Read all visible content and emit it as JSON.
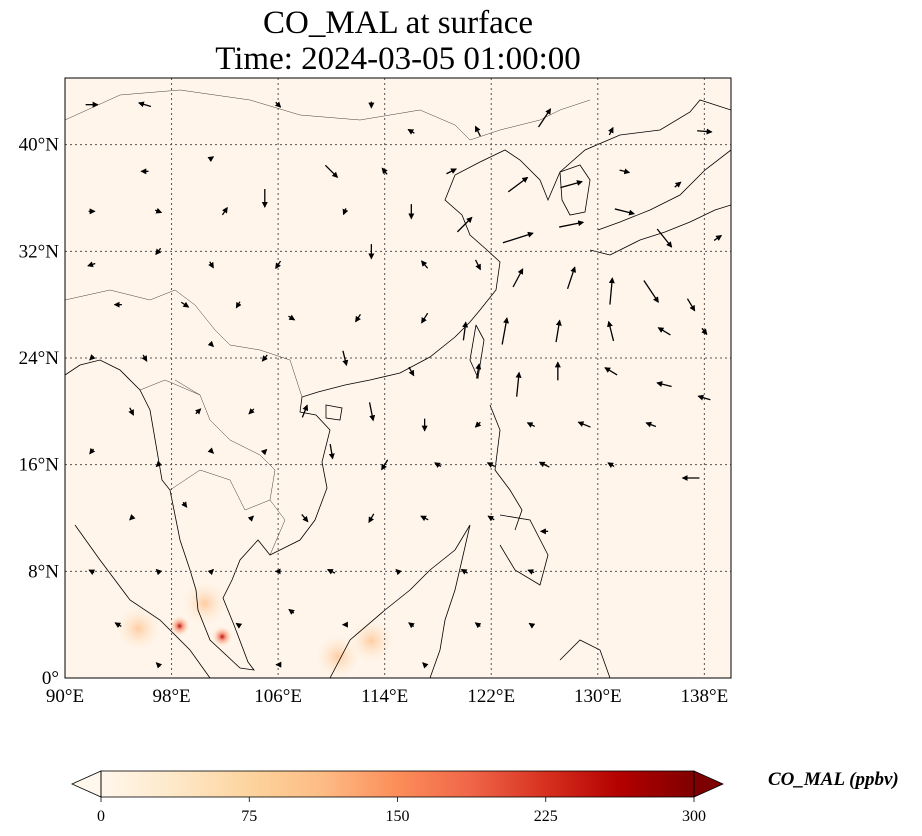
{
  "title": {
    "line1": "CO_MAL at surface",
    "line2": "Time: 2024-03-05 01:00:00"
  },
  "map": {
    "projection": "PlateCarree",
    "lon_range": [
      90,
      140
    ],
    "lat_range": [
      0,
      45
    ],
    "gridlines": "dotted",
    "lon_ticks": [
      {
        "value": 90,
        "label": "90°E"
      },
      {
        "value": 98,
        "label": "98°E"
      },
      {
        "value": 106,
        "label": "106°E"
      },
      {
        "value": 114,
        "label": "114°E"
      },
      {
        "value": 122,
        "label": "122°E"
      },
      {
        "value": 130,
        "label": "130°E"
      },
      {
        "value": 138,
        "label": "138°E"
      }
    ],
    "lat_ticks": [
      {
        "value": 0,
        "label": "0°"
      },
      {
        "value": 8,
        "label": "8°N"
      },
      {
        "value": 16,
        "label": "16°N"
      },
      {
        "value": 24,
        "label": "24°N"
      },
      {
        "value": 32,
        "label": "32°N"
      },
      {
        "value": 40,
        "label": "40°N"
      }
    ],
    "background_color": "#fff5eb",
    "coastline_color": "#000000",
    "hotspots": [
      {
        "lon": 98.6,
        "lat": 3.9,
        "ppbv": 260
      },
      {
        "lon": 101.8,
        "lat": 3.1,
        "ppbv": 230
      },
      {
        "lon": 100.5,
        "lat": 5.6,
        "ppbv": 140
      },
      {
        "lon": 95.5,
        "lat": 3.7,
        "ppbv": 60
      },
      {
        "lon": 110.5,
        "lat": 1.6,
        "ppbv": 60
      },
      {
        "lon": 113.0,
        "lat": 2.8,
        "ppbv": 50
      }
    ],
    "wind_vectors": [
      {
        "lon": 92,
        "lat": 43,
        "u": 1,
        "v": 0
      },
      {
        "lon": 96,
        "lat": 43,
        "u": -1,
        "v": 0.3
      },
      {
        "lon": 106,
        "lat": 43,
        "u": 0.4,
        "v": -0.4
      },
      {
        "lon": 113,
        "lat": 43,
        "u": 0,
        "v": -0.5
      },
      {
        "lon": 116,
        "lat": 41,
        "u": -0.5,
        "v": 0.3
      },
      {
        "lon": 121,
        "lat": 41,
        "u": -0.4,
        "v": 0.8
      },
      {
        "lon": 126,
        "lat": 42,
        "u": 1,
        "v": 1.5
      },
      {
        "lon": 131,
        "lat": 41,
        "u": 0.3,
        "v": 0.6
      },
      {
        "lon": 138,
        "lat": 41,
        "u": 1.2,
        "v": -0.1
      },
      {
        "lon": 96,
        "lat": 38,
        "u": -0.6,
        "v": 0
      },
      {
        "lon": 101,
        "lat": 39,
        "u": 0.3,
        "v": 0.2
      },
      {
        "lon": 110,
        "lat": 38,
        "u": 1,
        "v": -1
      },
      {
        "lon": 114,
        "lat": 38,
        "u": -0.4,
        "v": 0.5
      },
      {
        "lon": 119,
        "lat": 38,
        "u": 0.8,
        "v": 0.4
      },
      {
        "lon": 124,
        "lat": 37,
        "u": 1.6,
        "v": 1.2
      },
      {
        "lon": 128,
        "lat": 37,
        "u": 1.8,
        "v": 0.5
      },
      {
        "lon": 132,
        "lat": 38,
        "u": 0.8,
        "v": -0.2
      },
      {
        "lon": 136,
        "lat": 37,
        "u": 0.5,
        "v": 0.4
      },
      {
        "lon": 92,
        "lat": 35,
        "u": 0.5,
        "v": 0
      },
      {
        "lon": 97,
        "lat": 35,
        "u": 0.5,
        "v": -0.2
      },
      {
        "lon": 102,
        "lat": 35,
        "u": 0.4,
        "v": 0.6
      },
      {
        "lon": 105,
        "lat": 36,
        "u": 0,
        "v": -1.5
      },
      {
        "lon": 111,
        "lat": 35,
        "u": -0.2,
        "v": -0.5
      },
      {
        "lon": 116,
        "lat": 35,
        "u": 0,
        "v": -1.2
      },
      {
        "lon": 120,
        "lat": 34,
        "u": 1.2,
        "v": 1.2
      },
      {
        "lon": 124,
        "lat": 33,
        "u": 2.5,
        "v": 0.8
      },
      {
        "lon": 128,
        "lat": 34,
        "u": 2,
        "v": 0.4
      },
      {
        "lon": 132,
        "lat": 35,
        "u": 1.6,
        "v": -0.4
      },
      {
        "lon": 135,
        "lat": 33,
        "u": 1.2,
        "v": -1.5
      },
      {
        "lon": 139,
        "lat": 33,
        "u": 0.6,
        "v": 0.4
      },
      {
        "lon": 92,
        "lat": 31,
        "u": -0.6,
        "v": -0.2
      },
      {
        "lon": 97,
        "lat": 32,
        "u": -0.4,
        "v": -0.5
      },
      {
        "lon": 101,
        "lat": 31,
        "u": 0.3,
        "v": -0.5
      },
      {
        "lon": 106,
        "lat": 31,
        "u": -0.4,
        "v": -0.6
      },
      {
        "lon": 113,
        "lat": 32,
        "u": 0,
        "v": -1.2
      },
      {
        "lon": 117,
        "lat": 31,
        "u": -0.5,
        "v": 0.6
      },
      {
        "lon": 121,
        "lat": 31,
        "u": 0.4,
        "v": -0.8
      },
      {
        "lon": 124,
        "lat": 30,
        "u": 0.8,
        "v": 1.5
      },
      {
        "lon": 128,
        "lat": 30,
        "u": 0.6,
        "v": 1.8
      },
      {
        "lon": 131,
        "lat": 29,
        "u": 0.2,
        "v": 2.2
      },
      {
        "lon": 134,
        "lat": 29,
        "u": 1.2,
        "v": -1.8
      },
      {
        "lon": 137,
        "lat": 28,
        "u": 0.6,
        "v": -1
      },
      {
        "lon": 94,
        "lat": 28,
        "u": -0.6,
        "v": 0
      },
      {
        "lon": 99,
        "lat": 28,
        "u": 0.6,
        "v": -0.4
      },
      {
        "lon": 103,
        "lat": 28,
        "u": -0.3,
        "v": -0.5
      },
      {
        "lon": 107,
        "lat": 27,
        "u": 0.5,
        "v": -0.3
      },
      {
        "lon": 112,
        "lat": 27,
        "u": -0.4,
        "v": -0.6
      },
      {
        "lon": 117,
        "lat": 27,
        "u": -0.5,
        "v": -0.8
      },
      {
        "lon": 120,
        "lat": 26,
        "u": 0.2,
        "v": 1.5
      },
      {
        "lon": 123,
        "lat": 26,
        "u": 0.4,
        "v": 2.2
      },
      {
        "lon": 127,
        "lat": 26,
        "u": 0.3,
        "v": 1.8
      },
      {
        "lon": 131,
        "lat": 26,
        "u": -0.4,
        "v": 1.6
      },
      {
        "lon": 135,
        "lat": 26,
        "u": -1,
        "v": 0.6
      },
      {
        "lon": 138,
        "lat": 26,
        "u": 0.4,
        "v": -0.5
      },
      {
        "lon": 92,
        "lat": 24,
        "u": -0.3,
        "v": -0.3
      },
      {
        "lon": 96,
        "lat": 24,
        "u": 0.3,
        "v": -0.5
      },
      {
        "lon": 101,
        "lat": 25,
        "u": 0.3,
        "v": -0.3
      },
      {
        "lon": 105,
        "lat": 24,
        "u": -0.4,
        "v": -0.5
      },
      {
        "lon": 111,
        "lat": 24,
        "u": 0.3,
        "v": -1.2
      },
      {
        "lon": 116,
        "lat": 23,
        "u": 0.4,
        "v": -0.7
      },
      {
        "lon": 121,
        "lat": 23,
        "u": 0.2,
        "v": 1.2
      },
      {
        "lon": 124,
        "lat": 22,
        "u": 0.2,
        "v": 2
      },
      {
        "lon": 127,
        "lat": 23,
        "u": 0,
        "v": 1.5
      },
      {
        "lon": 131,
        "lat": 23,
        "u": -1,
        "v": 0.6
      },
      {
        "lon": 135,
        "lat": 22,
        "u": -1.2,
        "v": 0.3
      },
      {
        "lon": 138,
        "lat": 21,
        "u": -1,
        "v": 0.3
      },
      {
        "lon": 95,
        "lat": 20,
        "u": 0.3,
        "v": -0.6
      },
      {
        "lon": 100,
        "lat": 20,
        "u": 0.4,
        "v": 0.4
      },
      {
        "lon": 104,
        "lat": 20,
        "u": -0.4,
        "v": -0.4
      },
      {
        "lon": 108,
        "lat": 20,
        "u": 0.4,
        "v": 1
      },
      {
        "lon": 113,
        "lat": 20,
        "u": 0.3,
        "v": -1.5
      },
      {
        "lon": 117,
        "lat": 19,
        "u": 0,
        "v": -1
      },
      {
        "lon": 121,
        "lat": 19,
        "u": -0.4,
        "v": -0.4
      },
      {
        "lon": 125,
        "lat": 19,
        "u": -0.6,
        "v": 0.3
      },
      {
        "lon": 129,
        "lat": 19,
        "u": -1,
        "v": 0.4
      },
      {
        "lon": 134,
        "lat": 19,
        "u": -0.8,
        "v": 0.3
      },
      {
        "lon": 92,
        "lat": 17,
        "u": -0.3,
        "v": -0.4
      },
      {
        "lon": 97,
        "lat": 16,
        "u": -0.3,
        "v": -0.3
      },
      {
        "lon": 101,
        "lat": 17,
        "u": 0.3,
        "v": -0.3
      },
      {
        "lon": 105,
        "lat": 17,
        "u": 0.3,
        "v": 0.3
      },
      {
        "lon": 110,
        "lat": 17,
        "u": 0.2,
        "v": -1.2
      },
      {
        "lon": 114,
        "lat": 16,
        "u": -0.5,
        "v": -0.8
      },
      {
        "lon": 118,
        "lat": 16,
        "u": -0.5,
        "v": 0.3
      },
      {
        "lon": 122,
        "lat": 16,
        "u": -0.6,
        "v": 0.3
      },
      {
        "lon": 126,
        "lat": 16,
        "u": -0.8,
        "v": 0.4
      },
      {
        "lon": 131,
        "lat": 16,
        "u": -0.5,
        "v": 0.3
      },
      {
        "lon": 137,
        "lat": 15,
        "u": -1.4,
        "v": 0
      },
      {
        "lon": 95,
        "lat": 12,
        "u": -0.3,
        "v": -0.3
      },
      {
        "lon": 99,
        "lat": 13,
        "u": 0.3,
        "v": -0.4
      },
      {
        "lon": 104,
        "lat": 12,
        "u": 0.3,
        "v": 0.3
      },
      {
        "lon": 108,
        "lat": 12,
        "u": 0.5,
        "v": -0.6
      },
      {
        "lon": 113,
        "lat": 12,
        "u": -0.4,
        "v": -0.7
      },
      {
        "lon": 117,
        "lat": 12,
        "u": -0.6,
        "v": 0.3
      },
      {
        "lon": 122,
        "lat": 12,
        "u": -0.5,
        "v": 0.3
      },
      {
        "lon": 126,
        "lat": 11,
        "u": -0.6,
        "v": 0
      },
      {
        "lon": 92,
        "lat": 8,
        "u": -0.4,
        "v": 0.2
      },
      {
        "lon": 97,
        "lat": 8,
        "u": -0.3,
        "v": 0.3
      },
      {
        "lon": 101,
        "lat": 8,
        "u": 0.3,
        "v": 0.3
      },
      {
        "lon": 106,
        "lat": 8,
        "u": -0.4,
        "v": 0
      },
      {
        "lon": 110,
        "lat": 8,
        "u": -0.6,
        "v": 0.3
      },
      {
        "lon": 115,
        "lat": 8,
        "u": -0.3,
        "v": 0.3
      },
      {
        "lon": 120,
        "lat": 8,
        "u": -0.5,
        "v": 0.3
      },
      {
        "lon": 125,
        "lat": 8,
        "u": -0.5,
        "v": 0.2
      },
      {
        "lon": 94,
        "lat": 4,
        "u": -0.5,
        "v": 0.3
      },
      {
        "lon": 103,
        "lat": 4,
        "u": -0.3,
        "v": 0.2
      },
      {
        "lon": 107,
        "lat": 5,
        "u": -0.4,
        "v": 0.3
      },
      {
        "lon": 111,
        "lat": 4,
        "u": -0.3,
        "v": 0
      },
      {
        "lon": 116,
        "lat": 4,
        "u": -0.4,
        "v": 0.3
      },
      {
        "lon": 121,
        "lat": 4,
        "u": -0.4,
        "v": 0.3
      },
      {
        "lon": 125,
        "lat": 4,
        "u": -0.3,
        "v": 0.2
      },
      {
        "lon": 97,
        "lat": 1,
        "u": -0.3,
        "v": 0.3
      },
      {
        "lon": 106,
        "lat": 1,
        "u": -0.3,
        "v": 0
      },
      {
        "lon": 117,
        "lat": 1,
        "u": -0.3,
        "v": 0.3
      }
    ]
  },
  "colorbar": {
    "label": "CO_MAL (ppbv)",
    "cmap": "OrRd",
    "min": 0,
    "max": 300,
    "extend": "both",
    "stops": [
      "#fff7ec",
      "#fee8c8",
      "#fdd49e",
      "#fdbb84",
      "#fc8d59",
      "#ef6548",
      "#d7301f",
      "#b30000",
      "#7f0000"
    ],
    "ticks": [
      {
        "value": 0,
        "label": "0"
      },
      {
        "value": 75,
        "label": "75"
      },
      {
        "value": 150,
        "label": "150"
      },
      {
        "value": 225,
        "label": "225"
      },
      {
        "value": 300,
        "label": "300"
      }
    ]
  }
}
